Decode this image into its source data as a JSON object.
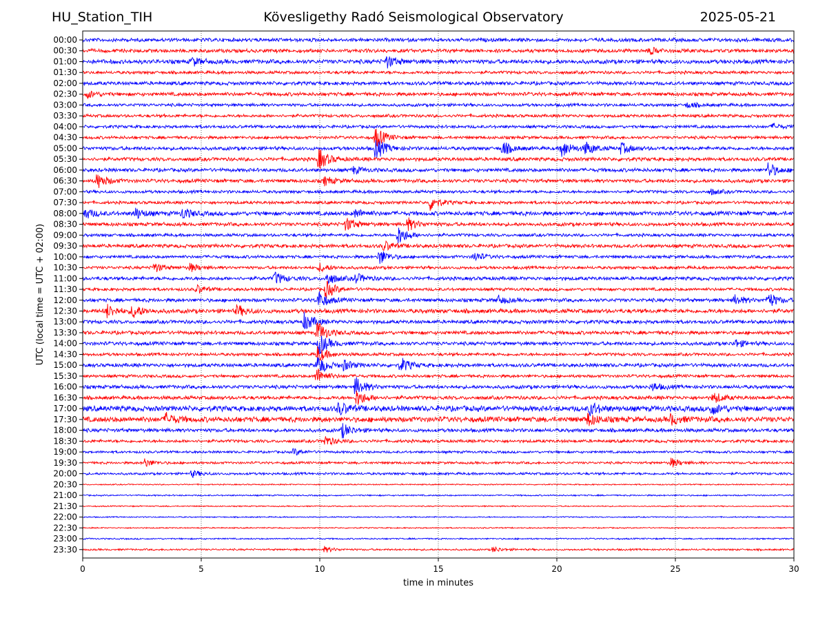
{
  "header": {
    "station": "HU_Station_TIH",
    "observatory": "Kövesligethy Radó Seismological Observatory",
    "date": "2025-05-21"
  },
  "chart_data": {
    "type": "line",
    "title": "Kövesligethy Radó Seismological Observatory",
    "xlabel": "time in minutes",
    "ylabel": "UTC (local time = UTC + 02:00)",
    "xlim": [
      0,
      30
    ],
    "x_ticks": [
      "0",
      "5",
      "10",
      "15",
      "20",
      "25",
      "30"
    ],
    "x_grid": "dotted vertical lines at every 5 minutes",
    "trace_colors": [
      "#0000ff",
      "#ff0000"
    ],
    "rows": [
      {
        "label": "00:00",
        "amp": 3,
        "events": []
      },
      {
        "label": "00:30",
        "amp": 3,
        "events": [
          {
            "t": 23.9,
            "a": 5
          }
        ]
      },
      {
        "label": "01:00",
        "amp": 3.5,
        "events": [
          {
            "t": 4.6,
            "a": 6
          },
          {
            "t": 12.8,
            "a": 9
          }
        ]
      },
      {
        "label": "01:30",
        "amp": 2.5,
        "events": []
      },
      {
        "label": "02:00",
        "amp": 3,
        "events": []
      },
      {
        "label": "02:30",
        "amp": 3,
        "events": [
          {
            "t": 0.2,
            "a": 5
          }
        ]
      },
      {
        "label": "03:00",
        "amp": 2.5,
        "events": [
          {
            "t": 25.5,
            "a": 4
          }
        ]
      },
      {
        "label": "03:30",
        "amp": 2.5,
        "events": []
      },
      {
        "label": "04:00",
        "amp": 2.5,
        "events": [
          {
            "t": 29.1,
            "a": 4
          }
        ]
      },
      {
        "label": "04:30",
        "amp": 2.5,
        "events": [
          {
            "t": 12.35,
            "a": 16
          }
        ]
      },
      {
        "label": "05:00",
        "amp": 3,
        "events": [
          {
            "t": 12.35,
            "a": 16
          },
          {
            "t": 17.7,
            "a": 10
          },
          {
            "t": 20.2,
            "a": 13
          },
          {
            "t": 21.2,
            "a": 9
          },
          {
            "t": 22.7,
            "a": 8
          }
        ]
      },
      {
        "label": "05:30",
        "amp": 3,
        "events": [
          {
            "t": 9.95,
            "a": 16
          }
        ]
      },
      {
        "label": "06:00",
        "amp": 3,
        "events": [
          {
            "t": 11.4,
            "a": 5
          },
          {
            "t": 28.9,
            "a": 11
          }
        ]
      },
      {
        "label": "06:30",
        "amp": 3,
        "events": [
          {
            "t": 0.6,
            "a": 11
          },
          {
            "t": 10.2,
            "a": 6
          }
        ]
      },
      {
        "label": "07:00",
        "amp": 2.5,
        "events": [
          {
            "t": 26.5,
            "a": 4
          }
        ]
      },
      {
        "label": "07:30",
        "amp": 2.5,
        "events": [
          {
            "t": 14.65,
            "a": 11
          }
        ]
      },
      {
        "label": "08:00",
        "amp": 3.5,
        "events": [
          {
            "t": 0.05,
            "a": 8
          },
          {
            "t": 2.2,
            "a": 8
          },
          {
            "t": 4.2,
            "a": 8
          },
          {
            "t": 11.5,
            "a": 6
          }
        ]
      },
      {
        "label": "08:30",
        "amp": 3,
        "events": [
          {
            "t": 11.1,
            "a": 10
          },
          {
            "t": 13.7,
            "a": 9
          }
        ]
      },
      {
        "label": "09:00",
        "amp": 2.5,
        "events": [
          {
            "t": 13.3,
            "a": 14
          }
        ]
      },
      {
        "label": "09:30",
        "amp": 3,
        "events": [
          {
            "t": 12.7,
            "a": 7
          }
        ]
      },
      {
        "label": "10:00",
        "amp": 2.5,
        "events": [
          {
            "t": 12.5,
            "a": 12
          },
          {
            "t": 16.5,
            "a": 7
          }
        ]
      },
      {
        "label": "10:30",
        "amp": 2.5,
        "events": [
          {
            "t": 3.0,
            "a": 7
          },
          {
            "t": 4.5,
            "a": 6
          },
          {
            "t": 10.0,
            "a": 6
          }
        ]
      },
      {
        "label": "11:00",
        "amp": 3,
        "events": [
          {
            "t": 8.1,
            "a": 9
          },
          {
            "t": 10.3,
            "a": 9
          },
          {
            "t": 11.5,
            "a": 7
          }
        ]
      },
      {
        "label": "11:30",
        "amp": 2.5,
        "events": [
          {
            "t": 4.8,
            "a": 6
          },
          {
            "t": 10.25,
            "a": 13
          }
        ]
      },
      {
        "label": "12:00",
        "amp": 3,
        "events": [
          {
            "t": 9.9,
            "a": 14
          },
          {
            "t": 17.5,
            "a": 6
          },
          {
            "t": 27.5,
            "a": 7
          },
          {
            "t": 28.9,
            "a": 11
          }
        ]
      },
      {
        "label": "12:30",
        "amp": 3.5,
        "events": [
          {
            "t": 1.0,
            "a": 10
          },
          {
            "t": 2.1,
            "a": 10
          },
          {
            "t": 6.5,
            "a": 8
          }
        ]
      },
      {
        "label": "13:00",
        "amp": 3,
        "events": [
          {
            "t": 9.35,
            "a": 13
          }
        ]
      },
      {
        "label": "13:30",
        "amp": 3,
        "events": [
          {
            "t": 9.9,
            "a": 16
          }
        ]
      },
      {
        "label": "14:00",
        "amp": 3,
        "events": [
          {
            "t": 9.95,
            "a": 16
          },
          {
            "t": 27.5,
            "a": 6
          }
        ]
      },
      {
        "label": "14:30",
        "amp": 2.5,
        "events": [
          {
            "t": 9.9,
            "a": 12
          }
        ]
      },
      {
        "label": "15:00",
        "amp": 3,
        "events": [
          {
            "t": 9.9,
            "a": 14
          },
          {
            "t": 11.0,
            "a": 7
          },
          {
            "t": 13.4,
            "a": 11
          }
        ]
      },
      {
        "label": "15:30",
        "amp": 2.5,
        "events": [
          {
            "t": 9.85,
            "a": 12
          }
        ]
      },
      {
        "label": "16:00",
        "amp": 3,
        "events": [
          {
            "t": 11.5,
            "a": 14
          },
          {
            "t": 24.0,
            "a": 6
          }
        ]
      },
      {
        "label": "16:30",
        "amp": 3,
        "events": [
          {
            "t": 11.55,
            "a": 12
          },
          {
            "t": 26.6,
            "a": 8
          }
        ]
      },
      {
        "label": "17:00",
        "amp": 4.5,
        "events": [
          {
            "t": 10.8,
            "a": 9
          },
          {
            "t": 21.4,
            "a": 9
          },
          {
            "t": 26.5,
            "a": 8
          }
        ]
      },
      {
        "label": "17:30",
        "amp": 4.5,
        "events": [
          {
            "t": 3.5,
            "a": 8
          },
          {
            "t": 21.3,
            "a": 9
          },
          {
            "t": 24.8,
            "a": 7
          }
        ]
      },
      {
        "label": "18:00",
        "amp": 3,
        "events": [
          {
            "t": 10.95,
            "a": 10
          }
        ]
      },
      {
        "label": "18:30",
        "amp": 2.5,
        "events": [
          {
            "t": 10.2,
            "a": 8
          }
        ]
      },
      {
        "label": "19:00",
        "amp": 2,
        "events": [
          {
            "t": 8.9,
            "a": 5
          }
        ]
      },
      {
        "label": "19:30",
        "amp": 2,
        "events": [
          {
            "t": 2.6,
            "a": 6
          },
          {
            "t": 24.8,
            "a": 7
          }
        ]
      },
      {
        "label": "20:00",
        "amp": 2,
        "events": [
          {
            "t": 4.6,
            "a": 5
          }
        ]
      },
      {
        "label": "20:30",
        "amp": 1,
        "events": []
      },
      {
        "label": "21:00",
        "amp": 1.2,
        "events": []
      },
      {
        "label": "21:30",
        "amp": 1,
        "events": []
      },
      {
        "label": "22:00",
        "amp": 1,
        "events": []
      },
      {
        "label": "22:30",
        "amp": 1,
        "events": []
      },
      {
        "label": "23:00",
        "amp": 1.2,
        "events": []
      },
      {
        "label": "23:30",
        "amp": 1.5,
        "events": [
          {
            "t": 10.2,
            "a": 4
          },
          {
            "t": 17.3,
            "a": 4
          }
        ]
      }
    ]
  }
}
